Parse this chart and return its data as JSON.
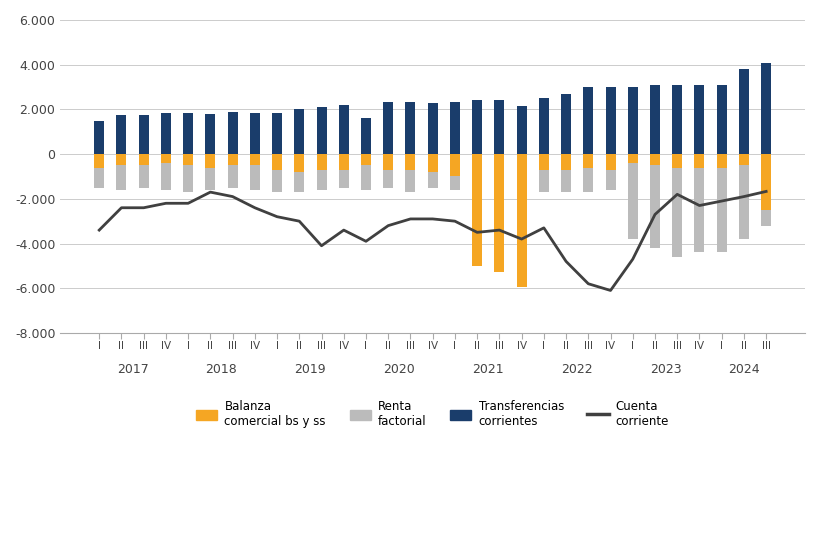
{
  "quarters": [
    "I",
    "II",
    "III",
    "IV",
    "I",
    "II",
    "III",
    "IV",
    "I",
    "II",
    "III",
    "IV",
    "I",
    "II",
    "III",
    "IV",
    "I",
    "II",
    "III",
    "IV",
    "I",
    "II",
    "III",
    "IV",
    "I",
    "II",
    "III",
    "IV",
    "I",
    "II",
    "III"
  ],
  "years": [
    2017,
    2017,
    2017,
    2017,
    2018,
    2018,
    2018,
    2018,
    2019,
    2019,
    2019,
    2019,
    2020,
    2020,
    2020,
    2020,
    2021,
    2021,
    2021,
    2021,
    2022,
    2022,
    2022,
    2022,
    2023,
    2023,
    2023,
    2023,
    2024,
    2024,
    2024
  ],
  "balanza": [
    -600,
    -500,
    -500,
    -400,
    -500,
    -600,
    -500,
    -500,
    -700,
    -800,
    -700,
    -700,
    -500,
    -700,
    -700,
    -800,
    -1000,
    -5026,
    -5258,
    -5958,
    -700,
    -700,
    -600,
    -700,
    -400,
    -500,
    -600,
    -600,
    -600,
    -500,
    -2480
  ],
  "renta": [
    -1500,
    -1600,
    -1500,
    -1600,
    -1700,
    -1600,
    -1500,
    -1600,
    -1700,
    -1700,
    -1600,
    -1500,
    -1600,
    -1500,
    -1700,
    -1500,
    -1600,
    -1600,
    -1700,
    -1600,
    -1700,
    -1700,
    -1700,
    -1600,
    -3800,
    -4200,
    -4600,
    -4400,
    -4400,
    -3800,
    -3222
  ],
  "transfer": [
    1500,
    1750,
    1750,
    1850,
    1850,
    1800,
    1900,
    1850,
    1850,
    2000,
    2100,
    2200,
    1600,
    2350,
    2350,
    2300,
    2350,
    2400,
    2400,
    2150,
    2500,
    2700,
    3000,
    3000,
    3000,
    3100,
    3100,
    3100,
    3100,
    3800,
    4073
  ],
  "cuenta": [
    -3400,
    -2400,
    -2400,
    -2200,
    -2200,
    -1700,
    -1900,
    -2400,
    -2800,
    -3000,
    -4100,
    -3400,
    -3900,
    -3200,
    -2900,
    -2900,
    -3000,
    -3500,
    -3400,
    -3800,
    -3300,
    -4800,
    -5800,
    -6100,
    -4700,
    -2700,
    -1800,
    -2300,
    -2100,
    -1900,
    -1669
  ],
  "bar_width": 0.45,
  "overlap_offsets": {
    "transfer": 0,
    "renta": 0,
    "balanza": 0
  },
  "colors": {
    "balanza": "#F5A623",
    "renta": "#BBBBBB",
    "transfer": "#1A3D6B",
    "cuenta": "#404040"
  },
  "ylim": [
    -8000,
    6000
  ],
  "yticks": [
    -8000,
    -6000,
    -4000,
    -2000,
    0,
    2000,
    4000,
    6000
  ],
  "background": "#FFFFFF",
  "grid_color": "#CCCCCC"
}
